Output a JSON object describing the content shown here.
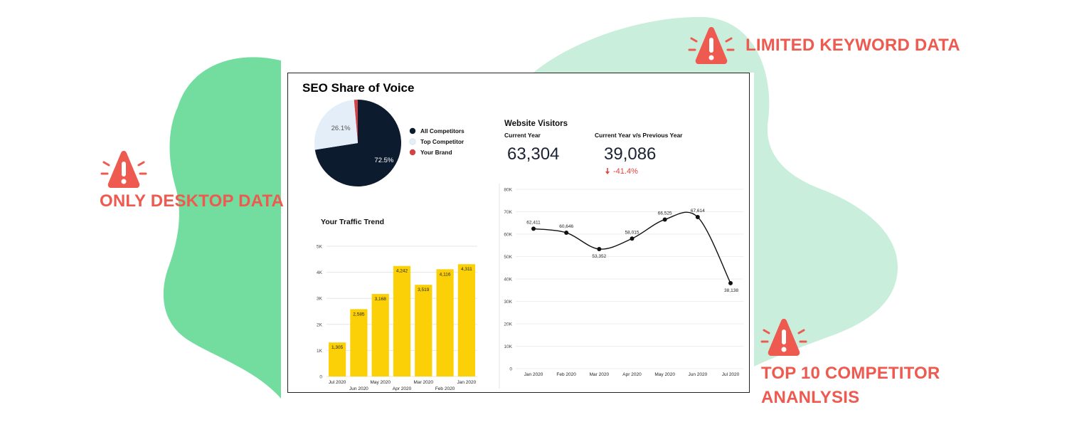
{
  "colors": {
    "alert": "#ee5a4f",
    "blob_green": "#72dd9e",
    "blob_light": "#c9eedb",
    "navy": "#0d1b2f",
    "light_blue": "#e4eef8",
    "brand_red": "#d24347",
    "bar_yellow": "#fcd006",
    "decrease_red": "#e0453f"
  },
  "callouts": {
    "limited_keyword": "LIMITED KEYWORD DATA",
    "only_desktop": "ONLY DESKTOP DATA",
    "competitor_line1": "TOP 10 COMPETITOR",
    "competitor_line2": "ANANLYSIS"
  },
  "dashboard": {
    "title": "SEO Share of Voice",
    "visitors": {
      "title": "Website Visitors",
      "current_label": "Current Year",
      "current_value": "63,304",
      "compare_label": "Current Year v/s Previous Year",
      "compare_value": "39,086",
      "change": "-41.4%",
      "change_icon": "down-arrow-icon"
    }
  },
  "chart_data": [
    {
      "type": "pie",
      "title": "SEO Share of Voice",
      "slices": [
        {
          "label": "All Competitors",
          "value": 72.5,
          "display": "72.5%",
          "color": "#0d1b2f"
        },
        {
          "label": "Top Competitor",
          "value": 26.1,
          "display": "26.1%",
          "color": "#e4eef8"
        },
        {
          "label": "Your Brand",
          "value": 1.4,
          "display": "",
          "color": "#d24347"
        }
      ]
    },
    {
      "type": "bar",
      "title": "Your Traffic Trend",
      "categories": [
        "Jul 2020",
        "Jun 2020",
        "May 2020",
        "Apr 2020",
        "Mar 2020",
        "Feb 2020",
        "Jan 2020"
      ],
      "values": [
        1305,
        2585,
        3168,
        4242,
        3519,
        4116,
        4311
      ],
      "value_labels": [
        "1,305",
        "2,585",
        "3,168",
        "4,242",
        "3,519",
        "4,116",
        "4,311"
      ],
      "ylim": [
        0,
        5000
      ],
      "yticks": [
        "0",
        "1K",
        "2K",
        "3K",
        "4K",
        "5K"
      ],
      "color": "#fcd006"
    },
    {
      "type": "line",
      "title": "Website Visitors",
      "categories": [
        "Jan 2020",
        "Feb 2020",
        "Mar 2020",
        "Apr 2020",
        "May 2020",
        "Jun 2020",
        "Jul 2020"
      ],
      "values": [
        62411,
        60646,
        53352,
        58015,
        66525,
        67614,
        38138
      ],
      "value_labels": [
        "62,411",
        "60,646",
        "53,352",
        "58,015",
        "66,525",
        "67,614",
        "38,138"
      ],
      "ylim": [
        0,
        80000
      ],
      "yticks": [
        "0",
        "10K",
        "20K",
        "30K",
        "40K",
        "50K",
        "60K",
        "70K",
        "80K"
      ]
    }
  ]
}
